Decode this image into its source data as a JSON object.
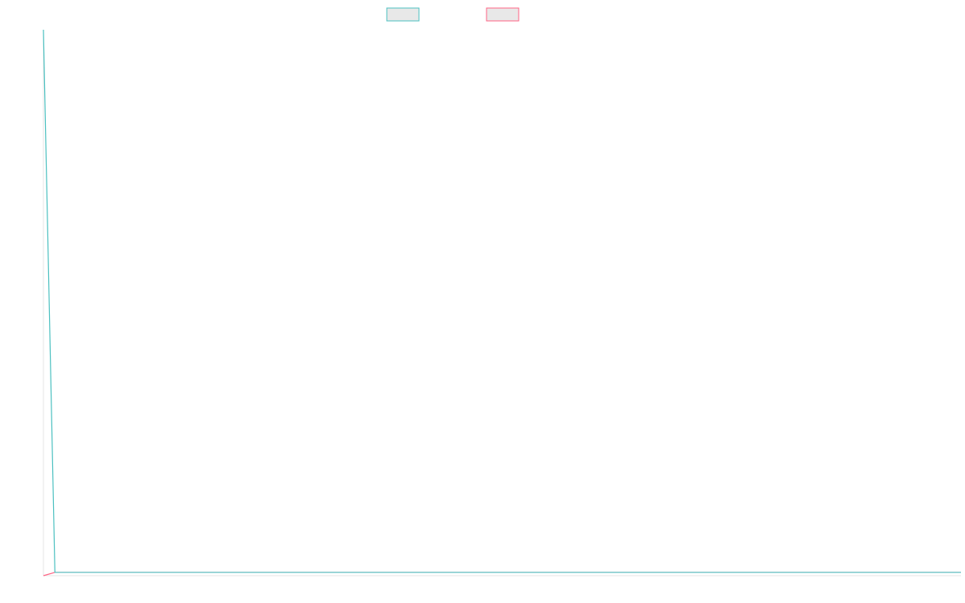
{
  "chart_data": {
    "type": "line",
    "title": "",
    "xlabel": "",
    "ylabel": "",
    "legend_placement": "top-center",
    "grid": false,
    "x": [
      0,
      1,
      2,
      3,
      4,
      5,
      6,
      7,
      8,
      9,
      10,
      11,
      12,
      13,
      14,
      15,
      16,
      17,
      18,
      19,
      20,
      21,
      22,
      23,
      24,
      25,
      26,
      27,
      28,
      29,
      30,
      31,
      32,
      33,
      34,
      35,
      36,
      37,
      38,
      39,
      40,
      41,
      42,
      43,
      44,
      45,
      46,
      47,
      48,
      49,
      50,
      51,
      52,
      53,
      54,
      55,
      56,
      57,
      58,
      59,
      60,
      61,
      62,
      63,
      64,
      65,
      66,
      67,
      68,
      69,
      70,
      71,
      72,
      73,
      74,
      75,
      76,
      77,
      78,
      79,
      80
    ],
    "xlim": [
      0,
      80
    ],
    "ylim": [
      0,
      100
    ],
    "series": [
      {
        "color": "#4bc0c0",
        "values": [
          100,
          0.6,
          0.6,
          0.6,
          0.6,
          0.6,
          0.6,
          0.6,
          0.6,
          0.6,
          0.6,
          0.6,
          0.6,
          0.6,
          0.6,
          0.6,
          0.6,
          0.6,
          0.6,
          0.6,
          0.6,
          0.6,
          0.6,
          0.6,
          0.6,
          0.6,
          0.6,
          0.6,
          0.6,
          0.6,
          0.6,
          0.6,
          0.6,
          0.6,
          0.6,
          0.6,
          0.6,
          0.6,
          0.6,
          0.6,
          0.6,
          0.6,
          0.6,
          0.6,
          0.6,
          0.6,
          0.6,
          0.6,
          0.6,
          0.6,
          0.6,
          0.6,
          0.6,
          0.6,
          0.6,
          0.6,
          0.6,
          0.6,
          0.6,
          0.6,
          0.6,
          0.6,
          0.6,
          0.6,
          0.6,
          0.6,
          0.6,
          0.6,
          0.6,
          0.6,
          0.6,
          0.6,
          0.6,
          0.6,
          0.6,
          0.6,
          0.6,
          0.6,
          0.6,
          0.6,
          0.6
        ]
      },
      {
        "color": "#ff6384",
        "values": [
          0,
          0.6,
          0.6,
          0.6,
          0.6,
          0.6,
          0.6,
          0.6,
          0.6,
          0.6,
          0.6,
          0.6,
          0.6,
          0.6,
          0.6,
          0.6,
          0.6,
          0.6,
          0.6,
          0.6,
          0.6,
          0.6,
          0.6,
          0.6,
          0.6,
          0.6,
          0.6,
          0.6,
          0.6,
          0.6,
          0.6,
          0.6,
          0.6,
          0.6,
          0.6,
          0.6,
          0.6,
          0.6,
          0.6,
          0.6,
          0.6,
          0.6,
          0.6,
          0.6,
          0.6,
          0.6,
          0.6,
          0.6,
          0.6,
          0.6,
          0.6,
          0.6,
          0.6,
          0.6,
          0.6,
          0.6,
          0.6,
          0.6,
          0.6,
          0.6,
          0.6,
          0.6,
          0.6,
          0.6,
          0.6,
          0.6,
          0.6,
          0.6,
          0.6,
          0.6,
          0.6,
          0.6,
          0.6,
          0.6,
          0.6,
          0.6,
          0.6,
          0.6,
          0.6,
          0.6,
          0.6
        ]
      }
    ]
  }
}
